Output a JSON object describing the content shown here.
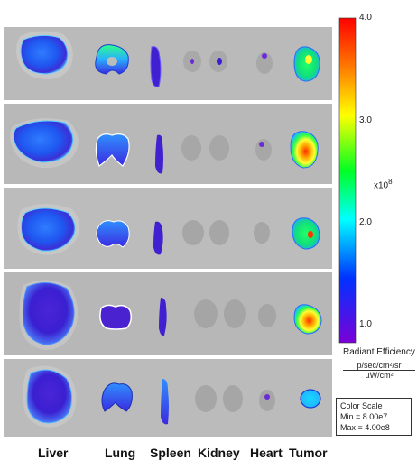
{
  "organ_labels": [
    "Liver",
    "Lung",
    "Spleen",
    "Kidney",
    "Heart",
    "Tumor"
  ],
  "color_bar": {
    "max_label": "4.0",
    "ticks": [
      "3.0",
      "2.0",
      "1.0"
    ],
    "multiplier_label": "x10",
    "multiplier_exponent": "8",
    "title": "Radiant Efficiency",
    "units_numerator": "p/sec/cm²/sr",
    "units_denominator": "µW/cm²",
    "colors": [
      "#ff0000",
      "#ff8800",
      "#ffff00",
      "#00ff00",
      "#00ffff",
      "#0000ff",
      "#6a00c8"
    ]
  },
  "color_scale_box": {
    "title": "Color Scale",
    "min": "Min = 8.00e7",
    "max": "Max = 4.00e8"
  },
  "panel_background": "#b9b9b9",
  "panel_count": 5
}
